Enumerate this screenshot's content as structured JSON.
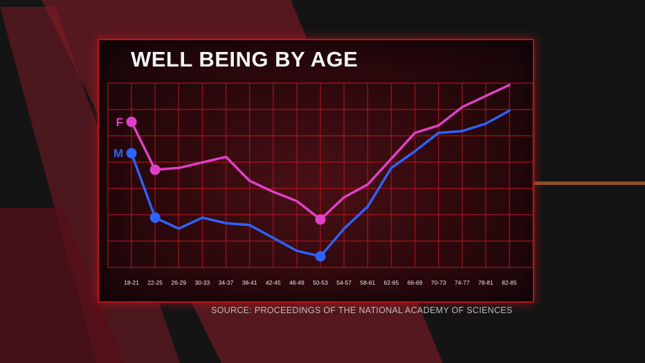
{
  "chart_data": {
    "type": "line",
    "title": "WELL BEING BY AGE",
    "categories": [
      "18-21",
      "22-25",
      "26-29",
      "30-33",
      "34-37",
      "38-41",
      "42-45",
      "46-49",
      "50-53",
      "54-57",
      "58-61",
      "62-65",
      "66-69",
      "70-73",
      "74-77",
      "78-81",
      "82-85"
    ],
    "series": [
      {
        "name": "F",
        "color": "#e040c8",
        "values": [
          79,
          53,
          54,
          57,
          60,
          47,
          41,
          36,
          26,
          38,
          45,
          59,
          73,
          77,
          87,
          93,
          99
        ]
      },
      {
        "name": "M",
        "color": "#2f62ff",
        "values": [
          62,
          27,
          21,
          27,
          24,
          23,
          16,
          9,
          6,
          21,
          33,
          54,
          63,
          73,
          74,
          78,
          85
        ]
      }
    ],
    "markers": [
      {
        "series": "F",
        "category": "18-21"
      },
      {
        "series": "F",
        "category": "22-25"
      },
      {
        "series": "F",
        "category": "50-53"
      },
      {
        "series": "M",
        "category": "18-21"
      },
      {
        "series": "M",
        "category": "22-25"
      },
      {
        "series": "M",
        "category": "50-53"
      }
    ],
    "ylim": [
      0,
      100
    ],
    "grid": true,
    "xlabel": "",
    "ylabel": ""
  },
  "source": "SOURCE: PROCEEDINGS OF THE NATIONAL ACADEMY OF SCIENCES"
}
